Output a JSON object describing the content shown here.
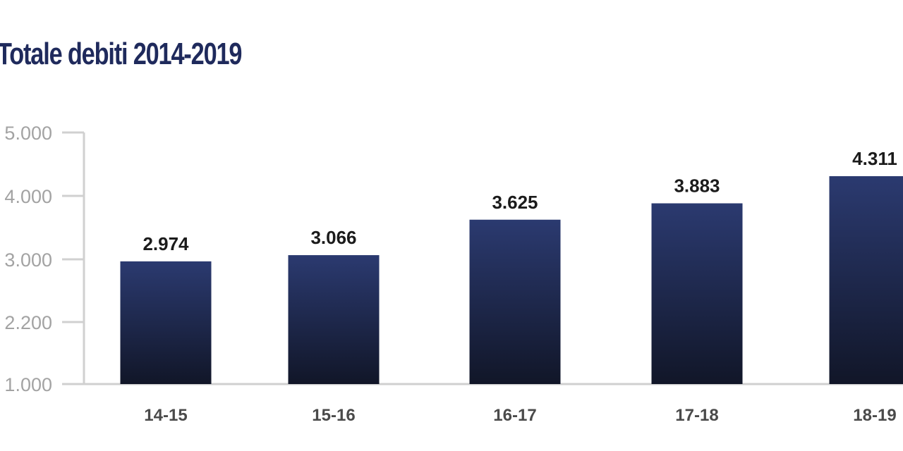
{
  "chart_data": {
    "type": "bar",
    "title": "Totale debiti 2014-2019",
    "categories": [
      "14-15",
      "15-16",
      "16-17",
      "17-18",
      "18-19"
    ],
    "values": [
      2974,
      3066,
      3625,
      3883,
      4311
    ],
    "value_labels": [
      "2.974",
      "3.066",
      "3.625",
      "3.883",
      "4.311"
    ],
    "y_ticks": [
      1000,
      2200,
      3000,
      4000,
      5000
    ],
    "y_tick_labels": [
      "1.000",
      "2.200",
      "3.000",
      "4.000",
      "5.000"
    ],
    "xlabel": "",
    "ylabel": "",
    "grid": false,
    "legend": "none",
    "colors": {
      "bar_top": "#2b3a70",
      "bar_bottom": "#111628",
      "axis": "#d0d0d0",
      "title": "#1f2a5c"
    }
  }
}
